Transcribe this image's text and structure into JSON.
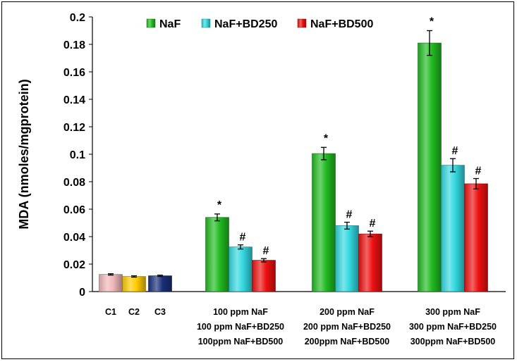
{
  "chart_data": {
    "type": "bar",
    "ylabel": "MDA (nmoles/mgprotein)",
    "ylim": [
      0,
      0.2
    ],
    "yticks": [
      "0",
      "0.02",
      "0.04",
      "0.06",
      "0.08",
      "0.1",
      "0.12",
      "0.14",
      "0.16",
      "0.18",
      "0.2"
    ],
    "legend_position": "top",
    "legend": [
      {
        "name": "NaF",
        "color": "#22bb22"
      },
      {
        "name": "NaF+BD250",
        "color": "#33d8e0"
      },
      {
        "name": "NaF+BD500",
        "color": "#ee1111"
      }
    ],
    "controls": [
      {
        "label": "C1",
        "value": 0.0125,
        "error": 0.0005,
        "color": "#f0b8b8"
      },
      {
        "label": "C2",
        "value": 0.011,
        "error": 0.0005,
        "color": "#ffcc00"
      },
      {
        "label": "C3",
        "value": 0.0115,
        "error": 0.0005,
        "color": "#1a2f7a"
      }
    ],
    "groups": [
      {
        "labels": [
          "100 ppm NaF",
          "100 ppm NaF+BD250",
          "100ppm NaF+BD500"
        ],
        "values": [
          0.054,
          0.0325,
          0.0228
        ],
        "errors": [
          0.0025,
          0.0015,
          0.0012
        ],
        "markers": [
          "*",
          "#",
          "#"
        ]
      },
      {
        "labels": [
          "200 ppm NaF",
          "200 ppm NaF+BD250",
          "200ppm NaF+BD500"
        ],
        "values": [
          0.1005,
          0.048,
          0.042
        ],
        "errors": [
          0.0045,
          0.0025,
          0.002
        ],
        "markers": [
          "*",
          "#",
          "#"
        ]
      },
      {
        "labels": [
          "300 ppm NaF",
          "300 ppm NaF+BD250",
          "300ppm NaF+BD500"
        ],
        "values": [
          0.181,
          0.092,
          0.0785
        ],
        "errors": [
          0.009,
          0.0048,
          0.0038
        ],
        "markers": [
          "*",
          "#",
          "#"
        ]
      }
    ]
  }
}
